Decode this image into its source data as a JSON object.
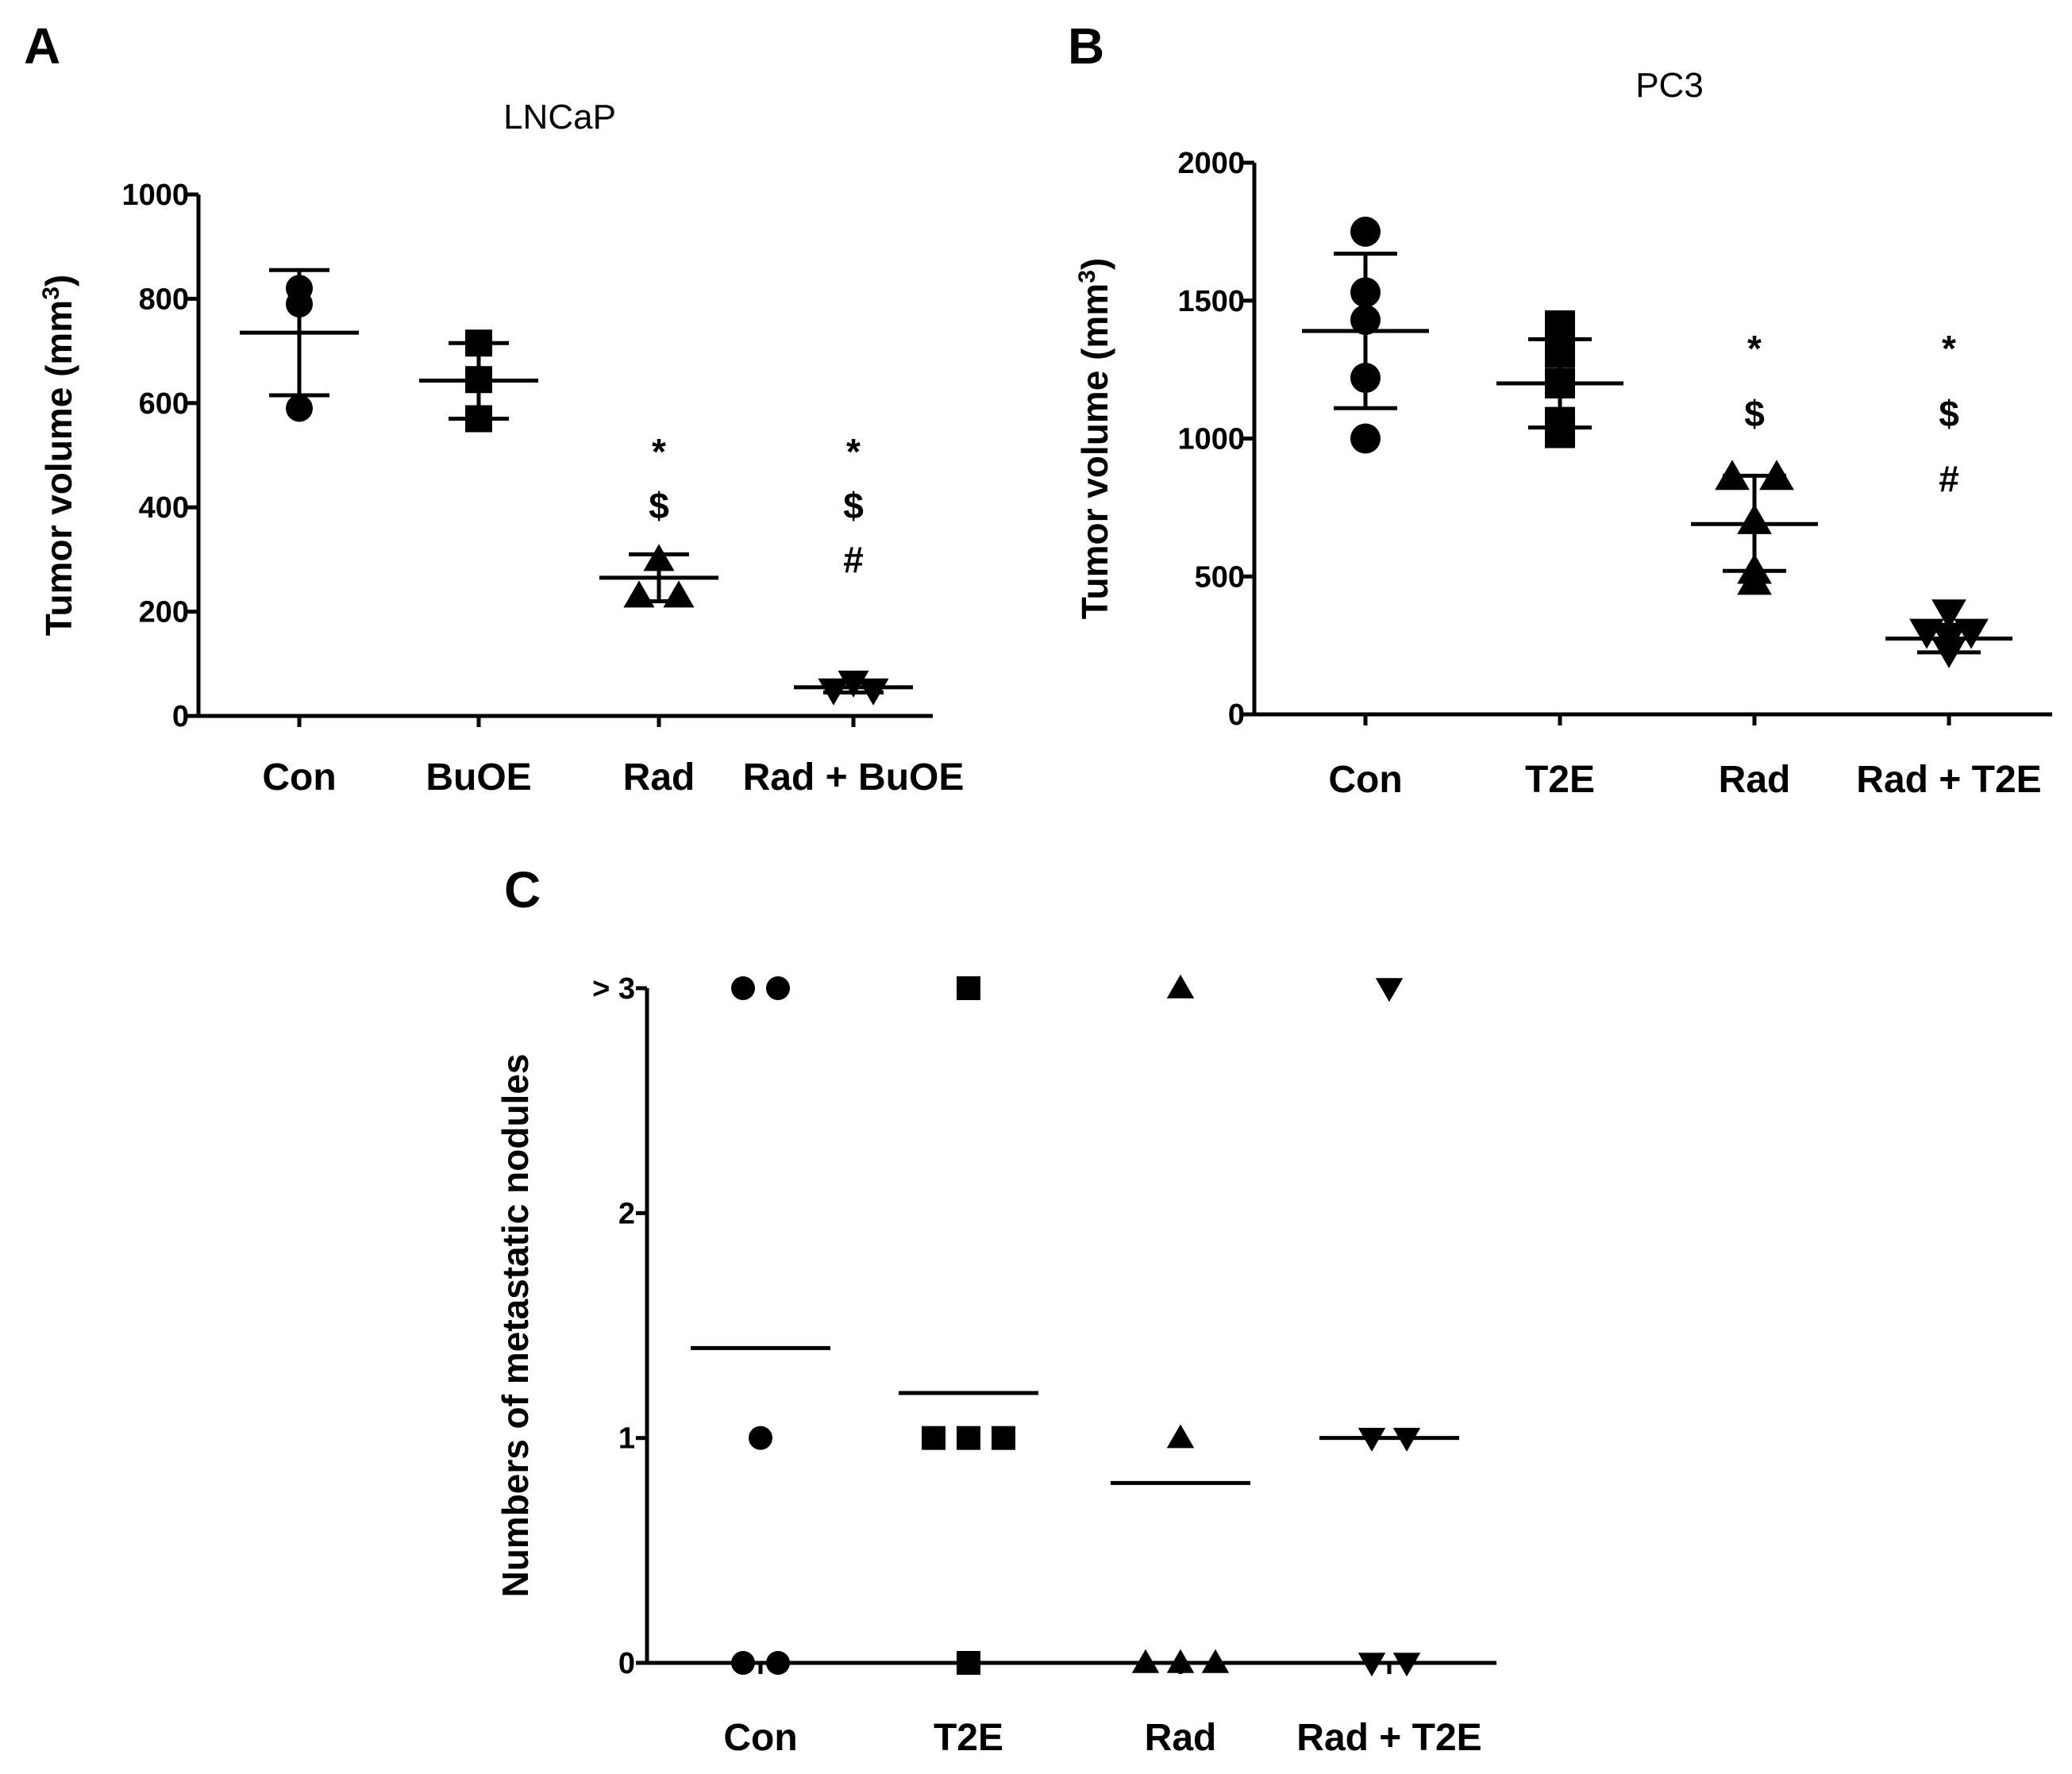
{
  "chart_data": [
    {
      "panel": "A",
      "type": "scatter",
      "title": "LNCaP",
      "ylabel": "Tumor volume (mm",
      "ylabel_sup": "3",
      "ylabel_end": ")",
      "ylim": [
        0,
        1000
      ],
      "yticks": [
        "0",
        "200",
        "400",
        "600",
        "800",
        "1000"
      ],
      "ytick_values": [
        0,
        200,
        400,
        600,
        800,
        1000
      ],
      "categories": [
        "Con",
        "BuOE",
        "Rad",
        "Rad + BuOE"
      ],
      "markers": [
        "circle",
        "square",
        "triangle-up",
        "triangle-down"
      ],
      "points": [
        [
          820,
          790,
          590
        ],
        [
          715,
          645,
          570
        ],
        [
          300,
          230,
          230
        ],
        [
          65,
          50,
          50
        ]
      ],
      "mean": [
        735,
        643,
        265,
        55
      ],
      "sd_low": [
        615,
        570,
        220,
        45
      ],
      "sd_high": [
        855,
        715,
        310,
        65
      ],
      "annotations": [
        [],
        [],
        [
          "*",
          "$"
        ],
        [
          "*",
          "$",
          "#"
        ]
      ]
    },
    {
      "panel": "B",
      "type": "scatter",
      "title": "PC3",
      "ylabel": "Tumor volume (mm",
      "ylabel_sup": "3",
      "ylabel_end": ")",
      "ylim": [
        0,
        2000
      ],
      "yticks": [
        "0",
        "500",
        "1000",
        "1500",
        "2000"
      ],
      "ytick_values": [
        0,
        500,
        1000,
        1500,
        2000
      ],
      "categories": [
        "Con",
        "T2E",
        "Rad",
        "Rad + T2E"
      ],
      "markers": [
        "circle",
        "square",
        "triangle-up",
        "triangle-down"
      ],
      "points": [
        [
          1750,
          1530,
          1430,
          1220,
          1000
        ],
        [
          1410,
          1310,
          1200,
          1060,
          1020
        ],
        [
          860,
          860,
          700,
          520,
          480
        ],
        [
          370,
          300,
          280,
          300,
          230
        ]
      ],
      "mean": [
        1390,
        1200,
        690,
        275
      ],
      "sd_low": [
        1110,
        1040,
        520,
        225
      ],
      "sd_high": [
        1670,
        1360,
        865,
        325
      ],
      "annotations": [
        [],
        [],
        [
          "*",
          "$"
        ],
        [
          "*",
          "$",
          "#"
        ]
      ]
    },
    {
      "panel": "C",
      "type": "scatter",
      "title": "",
      "ylabel": "Numbers of metastatic nodules",
      "ylim": [
        0,
        3
      ],
      "yticks": [
        "0",
        "1",
        "2",
        "> 3"
      ],
      "ytick_values": [
        0,
        1,
        2,
        3
      ],
      "categories": [
        "Con",
        "T2E",
        "Rad",
        "Rad + T2E"
      ],
      "markers": [
        "circle",
        "square",
        "triangle-up",
        "triangle-down"
      ],
      "points": [
        [
          3,
          3,
          1,
          0,
          0
        ],
        [
          3,
          1,
          1,
          1,
          0
        ],
        [
          3,
          1,
          0,
          0,
          0
        ],
        [
          3,
          1,
          1,
          0,
          0
        ]
      ],
      "mean": [
        1.4,
        1.2,
        0.8,
        1.0
      ],
      "annotations": [
        [],
        [],
        [],
        []
      ]
    }
  ]
}
